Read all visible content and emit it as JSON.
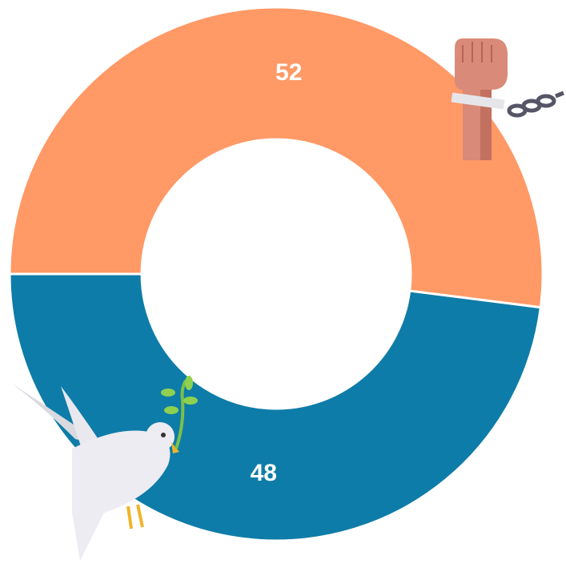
{
  "chart_data": {
    "type": "pie",
    "categories": [
      null,
      null
    ],
    "values": [
      52,
      48
    ],
    "colors": [
      "#FF9966",
      "#0E7CA8"
    ]
  }
}
